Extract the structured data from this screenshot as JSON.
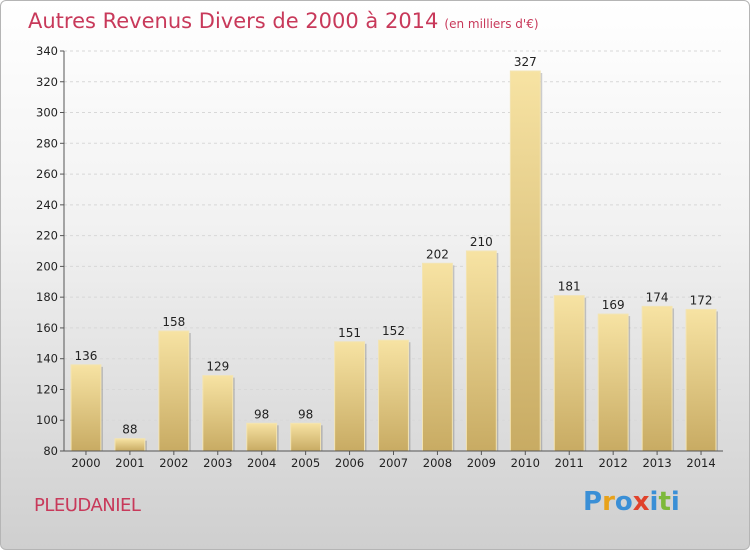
{
  "header": {
    "title": "Autres Revenus Divers de 2000 à 2014",
    "subtitle": "(en milliers d'€)"
  },
  "footer": {
    "commune": "PLEUDANIEL",
    "logo": "Proxiti",
    "logo_colors": [
      "#3a8fd6",
      "#e8a21a",
      "#3a8fd6",
      "#e0422b",
      "#3a8fd6",
      "#7db93a",
      "#3a8fd6"
    ]
  },
  "chart_data": {
    "type": "bar",
    "title": "Autres Revenus Divers de 2000 à 2014",
    "xlabel": "",
    "ylabel": "",
    "categories": [
      "2000",
      "2001",
      "2002",
      "2003",
      "2004",
      "2005",
      "2006",
      "2007",
      "2008",
      "2009",
      "2010",
      "2011",
      "2012",
      "2013",
      "2014"
    ],
    "values": [
      136,
      88,
      158,
      129,
      98,
      98,
      151,
      152,
      202,
      210,
      327,
      181,
      169,
      174,
      172
    ],
    "ylim": [
      80,
      340
    ],
    "yticks": [
      80,
      100,
      120,
      140,
      160,
      180,
      200,
      220,
      240,
      260,
      280,
      300,
      320,
      340
    ],
    "grid": true,
    "bar_color_top": "#f7e3a3",
    "bar_color_bottom": "#c8ab63"
  }
}
